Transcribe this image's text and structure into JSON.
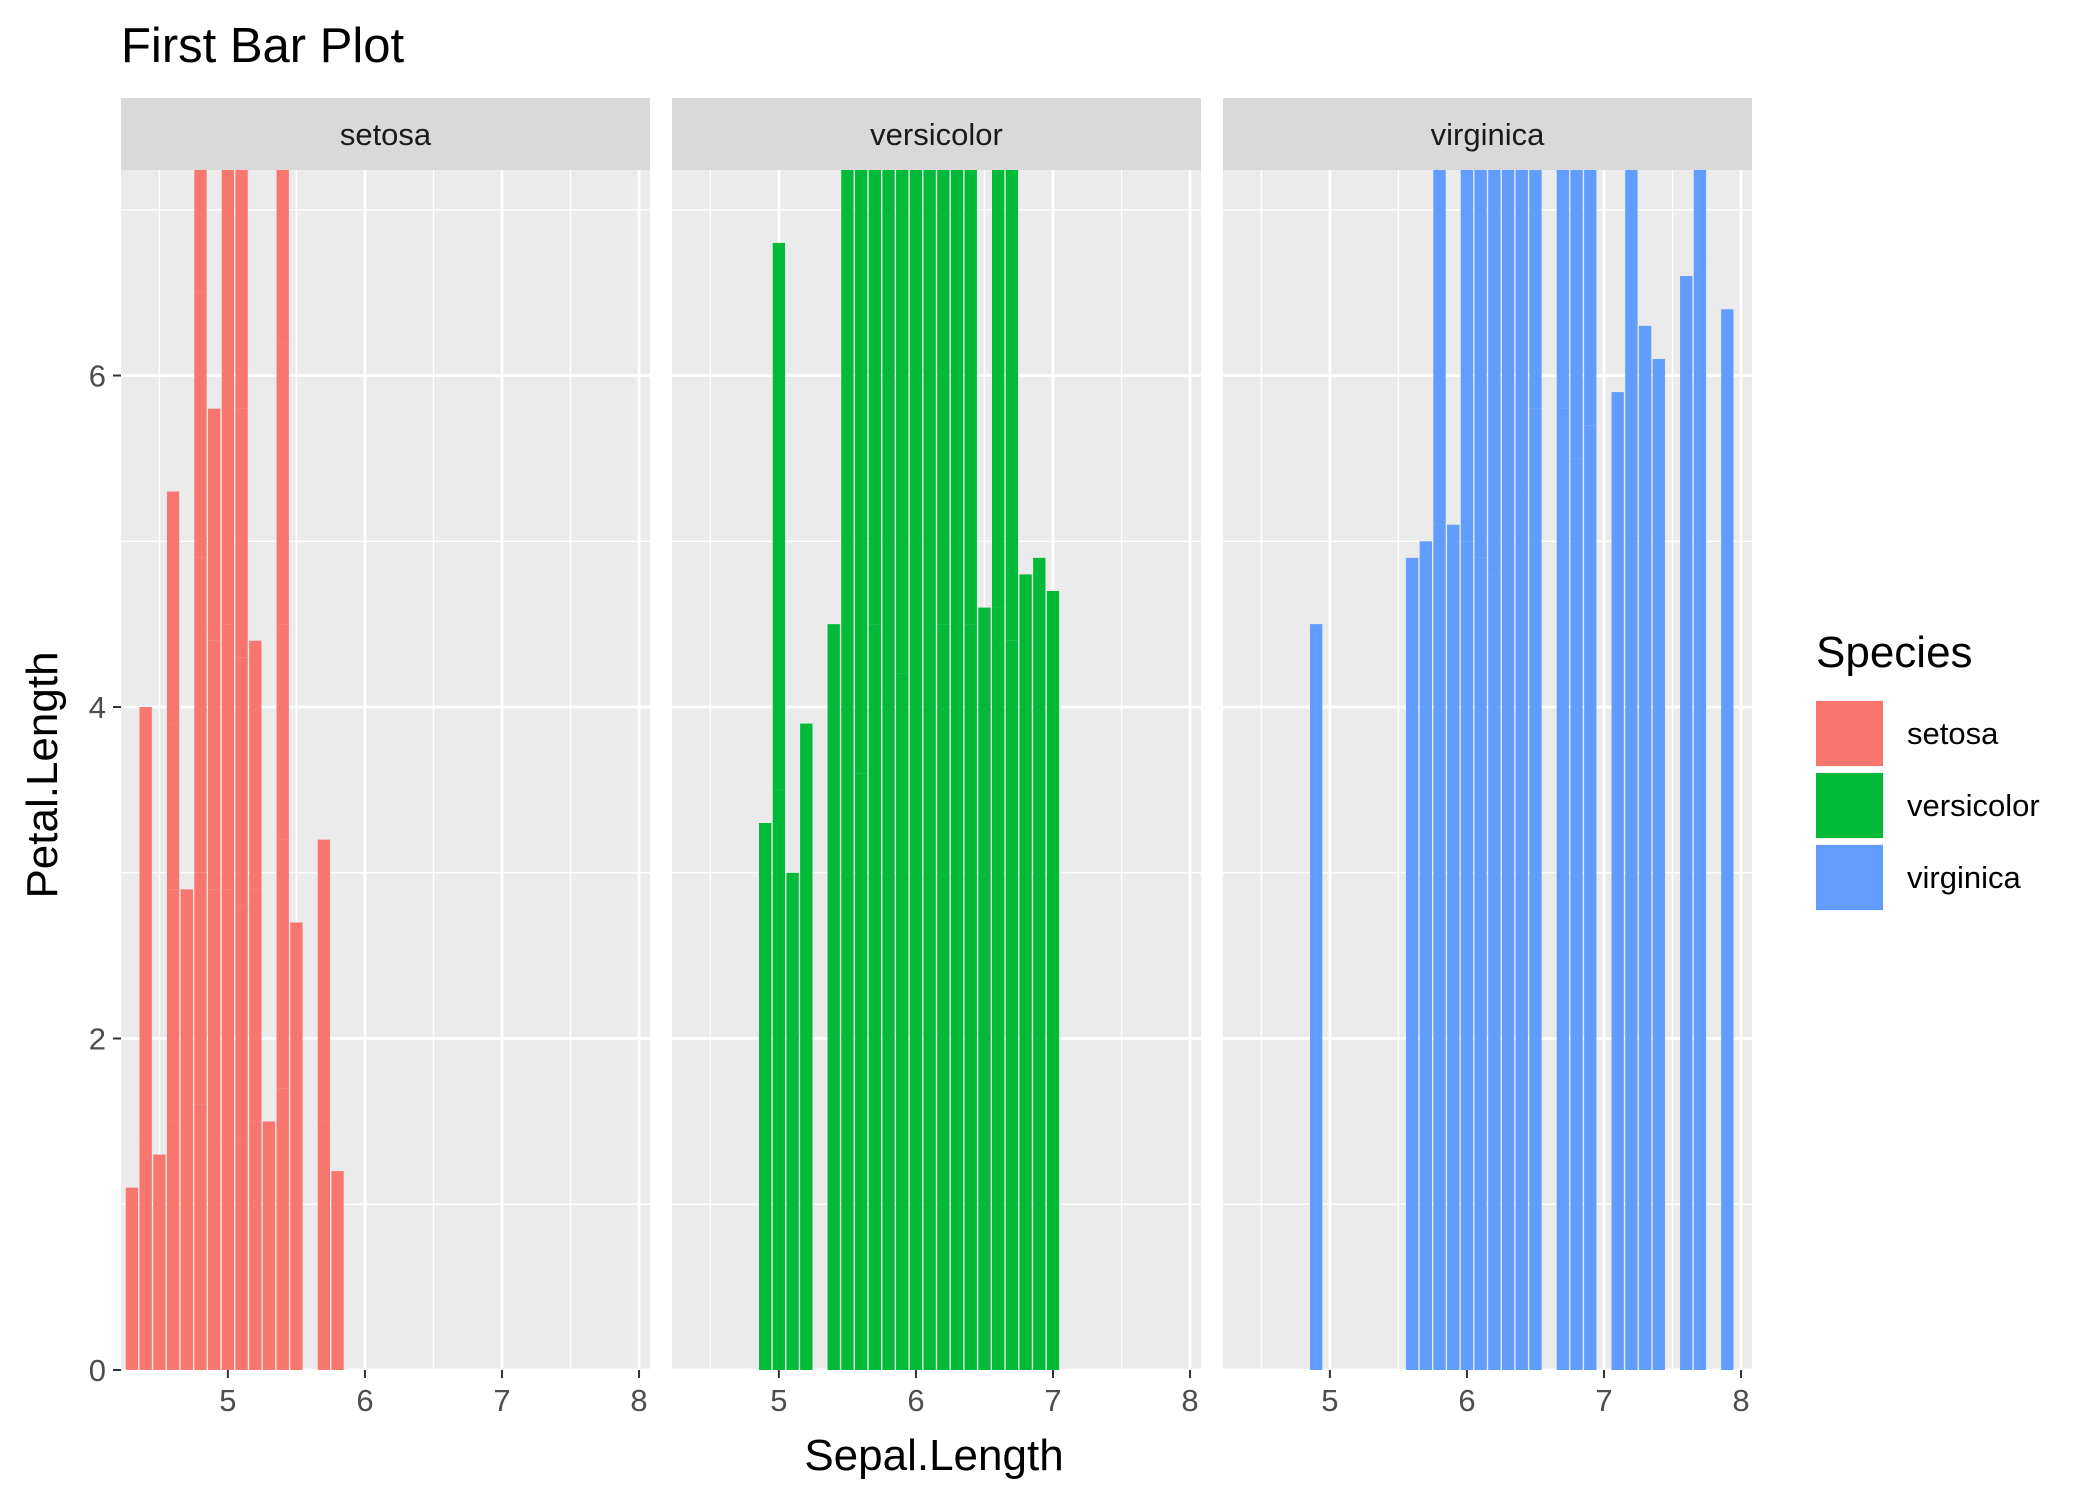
{
  "chart_data": {
    "type": "bar",
    "title": "First Bar Plot",
    "xlabel": "Sepal.Length",
    "ylabel": "Petal.Length",
    "xlim": [
      4.22,
      8.08
    ],
    "ylim": [
      0,
      7.24
    ],
    "x_ticks": [
      5,
      6,
      7,
      8
    ],
    "y_ticks": [
      0,
      2,
      4,
      6
    ],
    "grid": true,
    "legend": {
      "title": "Species",
      "position": "right",
      "entries": [
        {
          "label": "setosa",
          "color": "#F8766D"
        },
        {
          "label": "versicolor",
          "color": "#00BA38"
        },
        {
          "label": "virginica",
          "color": "#619CFF"
        }
      ]
    },
    "facets": [
      {
        "strip_label": "setosa",
        "color": "#F8766D",
        "x": [
          5.1,
          4.9,
          4.7,
          4.6,
          5.0,
          5.4,
          4.6,
          5.0,
          4.4,
          4.9,
          5.4,
          4.8,
          4.8,
          4.3,
          5.8,
          5.7,
          5.4,
          5.1,
          5.7,
          5.1,
          5.4,
          5.1,
          4.6,
          5.1,
          4.8,
          5.0,
          5.0,
          5.2,
          5.2,
          4.7,
          4.8,
          5.4,
          5.2,
          5.5,
          4.9,
          5.0,
          5.5,
          4.9,
          4.4,
          5.1,
          5.0,
          4.5,
          4.4,
          5.0,
          5.1,
          4.8,
          5.1,
          4.6,
          5.3,
          5.0
        ],
        "values": [
          1.4,
          1.4,
          1.3,
          1.5,
          1.4,
          1.7,
          1.4,
          1.5,
          1.4,
          1.5,
          1.5,
          1.6,
          1.4,
          1.1,
          1.2,
          1.5,
          1.3,
          1.4,
          1.7,
          1.5,
          1.7,
          1.5,
          1.0,
          1.7,
          1.9,
          1.6,
          1.6,
          1.5,
          1.4,
          1.6,
          1.6,
          1.5,
          1.5,
          1.4,
          1.5,
          1.2,
          1.3,
          1.4,
          1.3,
          1.5,
          1.3,
          1.3,
          1.3,
          1.6,
          1.9,
          1.4,
          1.6,
          1.4,
          1.5,
          1.4
        ]
      },
      {
        "strip_label": "versicolor",
        "color": "#00BA38",
        "x": [
          7.0,
          6.4,
          6.9,
          5.5,
          6.5,
          5.7,
          6.3,
          4.9,
          6.6,
          5.2,
          5.0,
          5.9,
          6.0,
          6.1,
          5.6,
          6.7,
          5.6,
          5.8,
          6.2,
          5.6,
          5.9,
          6.1,
          6.3,
          6.1,
          6.4,
          6.6,
          6.8,
          6.7,
          6.0,
          5.7,
          5.5,
          5.5,
          5.8,
          6.0,
          5.4,
          6.0,
          6.7,
          6.3,
          5.6,
          5.5,
          5.5,
          6.1,
          5.8,
          5.0,
          5.6,
          5.7,
          5.7,
          6.2,
          5.1,
          5.7
        ],
        "values": [
          4.7,
          4.5,
          4.9,
          4.0,
          4.6,
          4.5,
          4.7,
          3.3,
          4.6,
          3.9,
          3.5,
          4.2,
          4.0,
          4.7,
          3.6,
          4.4,
          4.5,
          4.1,
          4.5,
          3.9,
          4.8,
          4.0,
          4.9,
          4.7,
          4.3,
          4.4,
          4.8,
          5.0,
          4.5,
          3.5,
          3.8,
          3.7,
          3.9,
          5.1,
          4.5,
          4.5,
          4.7,
          4.4,
          4.1,
          4.0,
          4.4,
          4.6,
          4.0,
          3.3,
          4.2,
          4.2,
          4.2,
          4.3,
          3.0,
          4.1
        ]
      },
      {
        "strip_label": "virginica",
        "color": "#619CFF",
        "x": [
          6.3,
          5.8,
          7.1,
          6.3,
          6.5,
          7.6,
          4.9,
          7.3,
          6.7,
          7.2,
          6.5,
          6.4,
          6.8,
          5.7,
          5.8,
          6.4,
          6.5,
          7.7,
          7.7,
          6.0,
          6.9,
          5.6,
          7.7,
          6.3,
          6.7,
          7.2,
          6.2,
          6.1,
          6.4,
          7.2,
          7.4,
          7.9,
          6.4,
          6.3,
          6.1,
          7.7,
          6.3,
          6.4,
          6.0,
          6.9,
          6.7,
          6.9,
          5.8,
          6.8,
          6.7,
          6.7,
          6.3,
          6.5,
          6.2,
          5.9
        ],
        "values": [
          6.0,
          5.1,
          5.9,
          5.6,
          5.8,
          6.6,
          4.5,
          6.3,
          5.8,
          6.1,
          5.1,
          5.3,
          5.5,
          5.0,
          5.1,
          5.3,
          5.5,
          6.7,
          6.9,
          5.0,
          5.7,
          4.9,
          6.7,
          4.9,
          5.7,
          6.0,
          4.8,
          4.9,
          5.6,
          5.8,
          6.1,
          6.4,
          5.6,
          5.1,
          5.6,
          6.1,
          5.6,
          5.5,
          4.8,
          5.4,
          5.6,
          5.1,
          5.1,
          5.9,
          5.7,
          5.2,
          5.0,
          5.2,
          5.4,
          5.1
        ]
      }
    ]
  }
}
